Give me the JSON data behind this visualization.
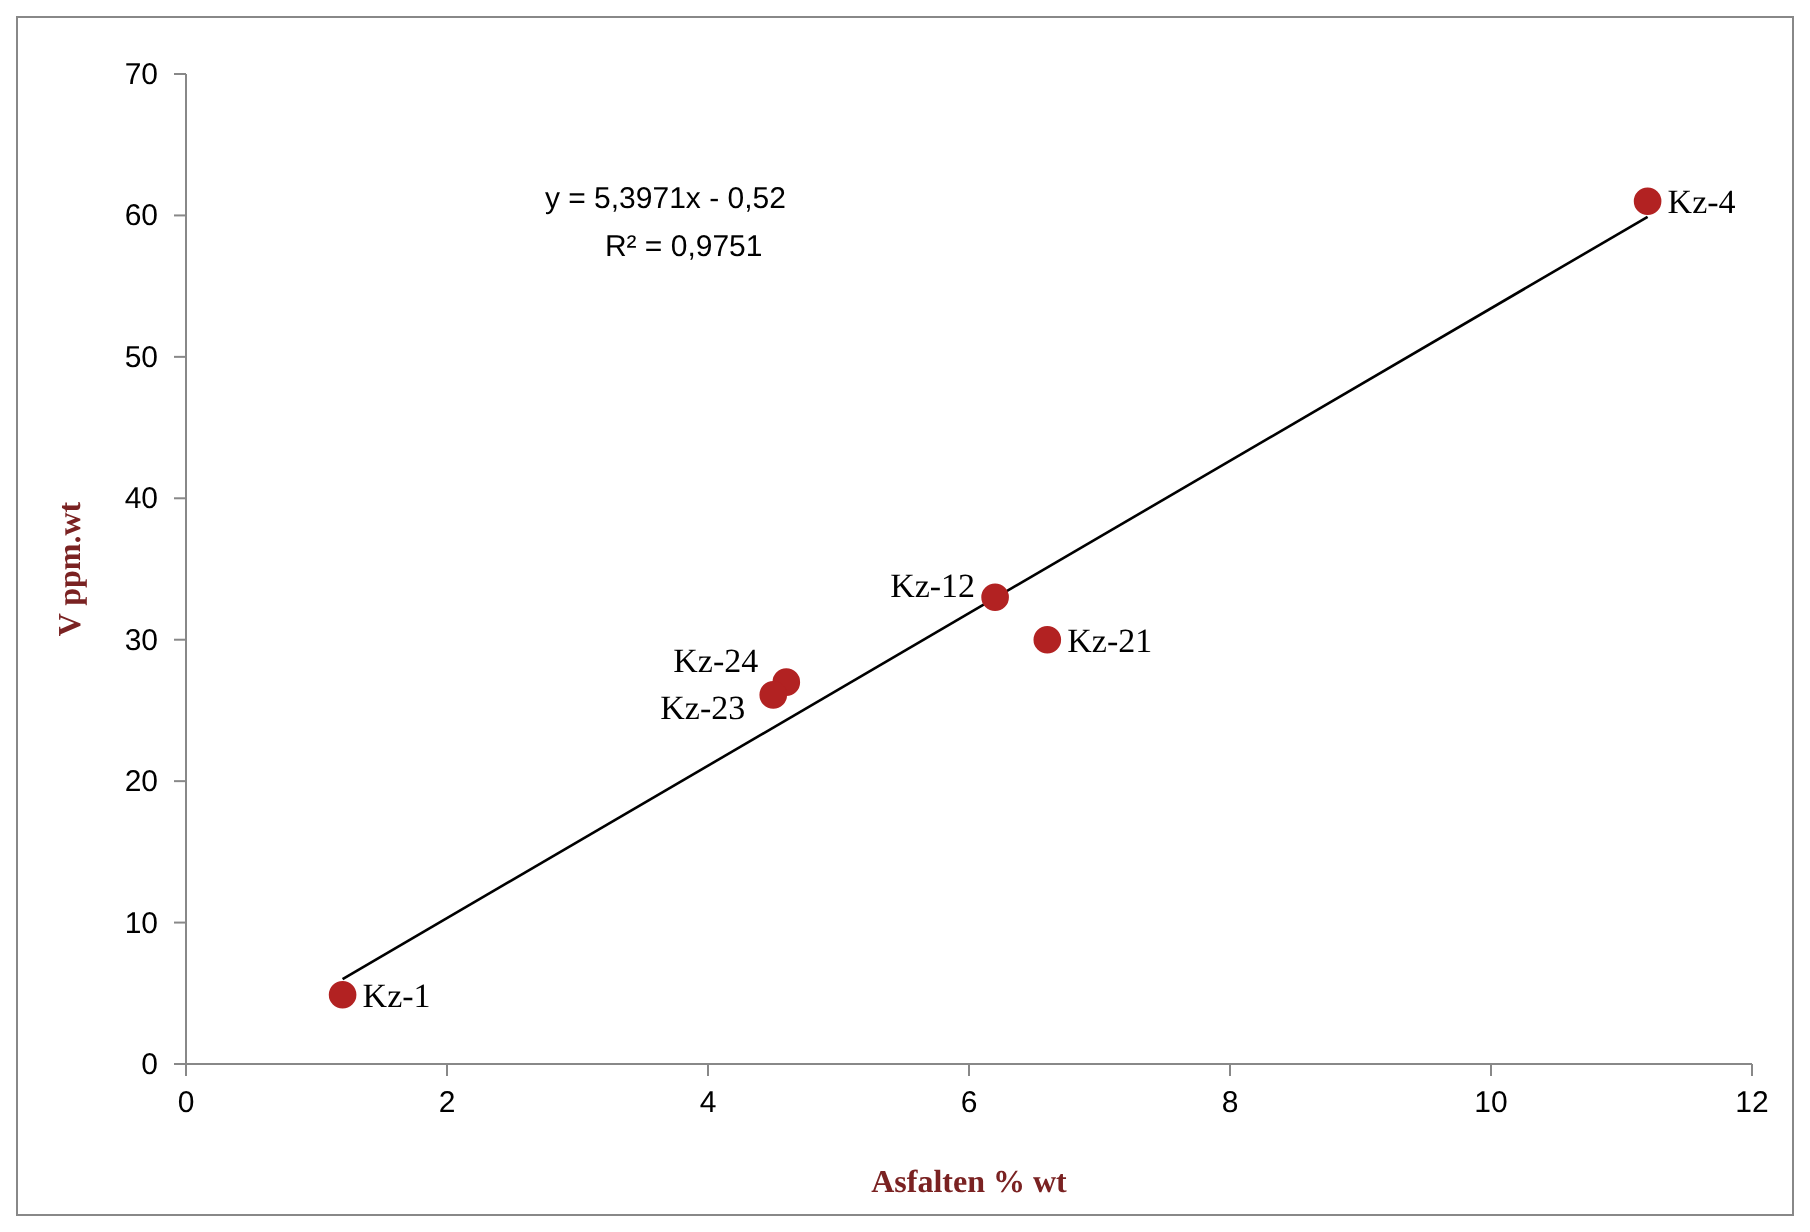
{
  "chart_data": {
    "type": "scatter",
    "xlabel": "Asfalten % wt",
    "ylabel": "V ppm.wt",
    "xlim": [
      0,
      12
    ],
    "xticks": [
      0,
      2,
      4,
      6,
      8,
      10,
      12
    ],
    "ylim": [
      0,
      70
    ],
    "yticks": [
      0,
      10,
      20,
      30,
      40,
      50,
      60,
      70
    ],
    "grid": false,
    "series": [
      {
        "marker": "circle",
        "color": "#b22222",
        "x": [
          1.2,
          11.2,
          6.2,
          6.6,
          4.6,
          4.5
        ],
        "values": [
          4.9,
          61,
          33,
          30,
          27,
          26.1
        ]
      },
      {
        "type": "line",
        "color": "#000000",
        "x": [
          1.2,
          11.2
        ],
        "values": [
          6.0,
          59.9
        ],
        "line_style": "solid"
      }
    ],
    "annotations": [
      {
        "text": "Kz-1",
        "x": 1.2,
        "y": 4.9
      },
      {
        "text": "Kz-4",
        "x": 11.2,
        "y": 61
      },
      {
        "text": "Kz-12",
        "x": 6.2,
        "y": 33
      },
      {
        "text": "Kz-21",
        "x": 6.6,
        "y": 30
      },
      {
        "text": "Kz-24",
        "x": 4.6,
        "y": 27
      },
      {
        "text": "Kz-23",
        "x": 4.5,
        "y": 26.1
      },
      "y = 5,3971x - 0,52",
      "R² = 0,9751"
    ]
  }
}
